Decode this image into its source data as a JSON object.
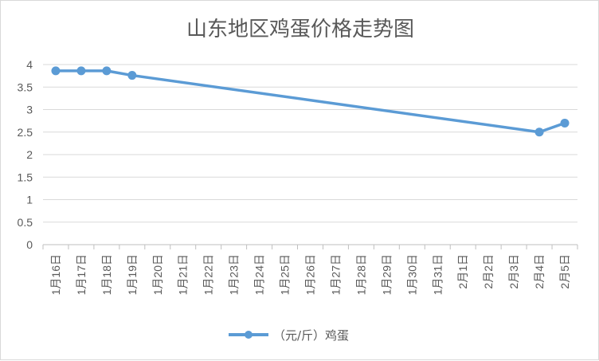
{
  "chart_data": {
    "type": "line",
    "title": "山东地区鸡蛋价格走势图",
    "xlabel": "",
    "ylabel": "",
    "ylim": [
      0,
      4
    ],
    "yticks": [
      "0",
      "0.5",
      "1",
      "1.5",
      "2",
      "2.5",
      "3",
      "3.5",
      "4"
    ],
    "grid": true,
    "legend_position": "bottom",
    "categories": [
      "1月16日",
      "1月17日",
      "1月18日",
      "1月19日",
      "1月20日",
      "1月21日",
      "1月22日",
      "1月23日",
      "1月24日",
      "1月25日",
      "1月26日",
      "1月27日",
      "1月28日",
      "1月29日",
      "1月30日",
      "1月31日",
      "2月1日",
      "2月2日",
      "2月3日",
      "2月4日",
      "2月5日"
    ],
    "series": [
      {
        "name": "（元/斤）鸡蛋",
        "color": "#5b9bd5",
        "points": [
          {
            "x": "1月16日",
            "y": 3.86
          },
          {
            "x": "1月17日",
            "y": 3.86
          },
          {
            "x": "1月18日",
            "y": 3.86
          },
          {
            "x": "1月19日",
            "y": 3.76
          },
          {
            "x": "2月4日",
            "y": 2.5
          },
          {
            "x": "2月5日",
            "y": 2.7
          }
        ]
      }
    ]
  }
}
